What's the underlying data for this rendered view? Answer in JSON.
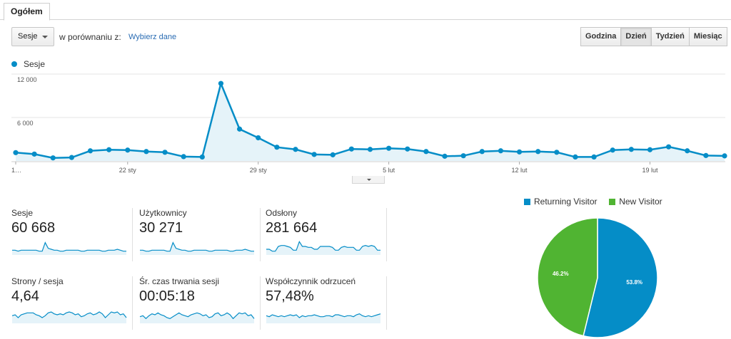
{
  "tabs": {
    "overview": "Ogółem"
  },
  "controls": {
    "metric_select": "Sesje",
    "compare_label": "w porównaniu z:",
    "compare_link": "Wybierz dane",
    "granularity": [
      "Godzina",
      "Dzień",
      "Tydzień",
      "Miesiąc"
    ],
    "granularity_active": "Dzień"
  },
  "colors": {
    "series": "#058dc7",
    "series_fill": "#e5f3f9",
    "returning": "#058dc7",
    "new": "#50b432"
  },
  "chart_data": [
    {
      "type": "area",
      "series": [
        {
          "name": "Sesje",
          "values": [
            1150,
            950,
            420,
            480,
            1400,
            1550,
            1500,
            1300,
            1200,
            600,
            550,
            10700,
            4400,
            3200,
            1900,
            1600,
            900,
            850,
            1650,
            1600,
            1750,
            1650,
            1300,
            650,
            720,
            1300,
            1400,
            1250,
            1300,
            1200,
            550,
            550,
            1500,
            1600,
            1550,
            1950,
            1400,
            750,
            700
          ]
        }
      ],
      "x_tick_labels": [
        "1…",
        "22 sty",
        "29 sty",
        "5 lut",
        "12 lut",
        "19 lut"
      ],
      "y_tick_labels": [
        "12 000",
        "6 000"
      ],
      "ylim": [
        0,
        12000
      ],
      "grid": true
    },
    {
      "type": "pie",
      "categories": [
        "Returning Visitor",
        "New Visitor"
      ],
      "values": [
        53.8,
        46.2
      ],
      "labels": [
        "53.8%",
        "46.2%"
      ],
      "legend": "top"
    }
  ],
  "tiles": [
    {
      "name": "Sesje",
      "value": "60 668",
      "spark": [
        5,
        5,
        4,
        5,
        5,
        5,
        5,
        5,
        5,
        4,
        4,
        13,
        7,
        6,
        5,
        5,
        4,
        4,
        5,
        5,
        5,
        5,
        5,
        4,
        4,
        5,
        5,
        5,
        5,
        5,
        4,
        4,
        5,
        5,
        5,
        6,
        5,
        4,
        4
      ]
    },
    {
      "name": "Użytkownicy",
      "value": "30 271",
      "spark": [
        5,
        5,
        4,
        4,
        5,
        5,
        5,
        5,
        5,
        4,
        4,
        13,
        7,
        6,
        5,
        5,
        4,
        4,
        5,
        5,
        5,
        5,
        5,
        4,
        4,
        5,
        5,
        5,
        5,
        5,
        4,
        4,
        5,
        5,
        5,
        6,
        5,
        4,
        4
      ]
    },
    {
      "name": "Odsłony",
      "value": "281 664",
      "spark": [
        6,
        6,
        4,
        4,
        9,
        10,
        10,
        9,
        8,
        5,
        5,
        14,
        9,
        9,
        8,
        8,
        6,
        6,
        9,
        9,
        9,
        9,
        8,
        5,
        5,
        8,
        9,
        8,
        8,
        8,
        5,
        5,
        9,
        10,
        9,
        10,
        9,
        5,
        5
      ]
    },
    {
      "name": "Strony / sesja",
      "value": "4,64",
      "spark": [
        8,
        9,
        6,
        9,
        10,
        11,
        11,
        11,
        9,
        8,
        6,
        8,
        11,
        12,
        10,
        9,
        10,
        9,
        11,
        12,
        11,
        9,
        10,
        7,
        8,
        10,
        11,
        9,
        10,
        12,
        10,
        6,
        9,
        12,
        11,
        12,
        9,
        10,
        6
      ]
    },
    {
      "name": "Śr. czas trwania sesji",
      "value": "00:05:18",
      "spark": [
        7,
        8,
        5,
        8,
        10,
        9,
        11,
        9,
        8,
        6,
        5,
        7,
        9,
        11,
        9,
        8,
        7,
        9,
        10,
        11,
        10,
        8,
        9,
        6,
        7,
        10,
        11,
        8,
        9,
        11,
        9,
        5,
        8,
        11,
        10,
        11,
        8,
        9,
        5
      ]
    },
    {
      "name": "Współczynnik odrzuceń",
      "value": "57,48%",
      "spark": [
        8,
        7,
        9,
        8,
        7,
        8,
        7,
        8,
        9,
        8,
        9,
        6,
        8,
        7,
        8,
        8,
        9,
        8,
        7,
        7,
        8,
        8,
        7,
        9,
        9,
        8,
        7,
        8,
        8,
        7,
        9,
        10,
        8,
        7,
        8,
        7,
        8,
        9,
        10
      ]
    }
  ]
}
